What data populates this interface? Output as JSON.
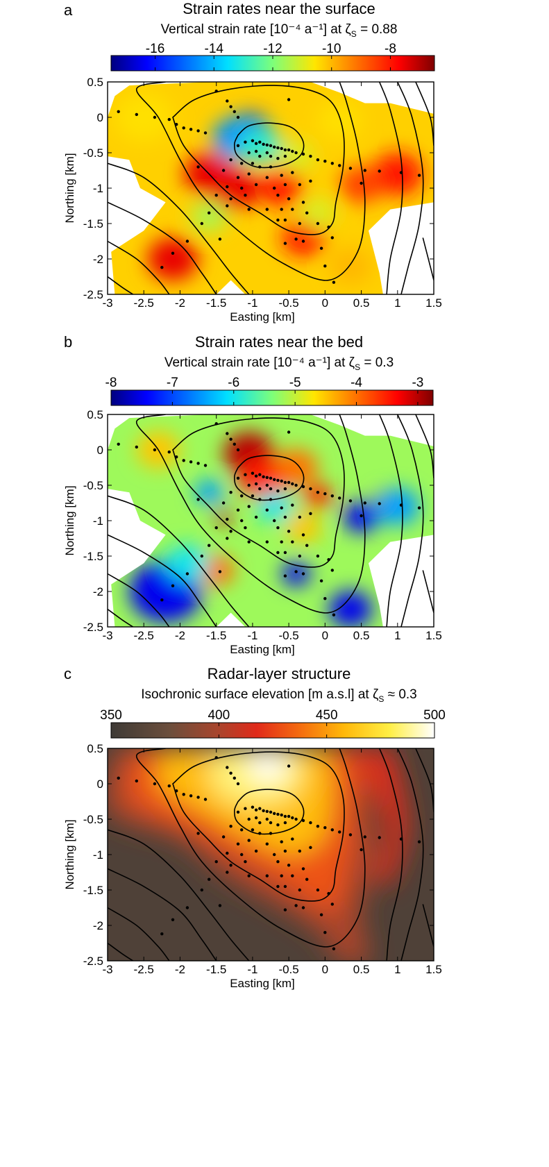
{
  "chart_data": [
    {
      "panel": "a",
      "type": "heatmap",
      "title": "Strain rates near the surface",
      "subtitle": "Vertical strain rate [10⁻⁴ a⁻¹] at ζ",
      "subscript": "S",
      "subtitle_suffix": " = 0.88",
      "colorbar_ticks": [
        "-16",
        "-14",
        "-12",
        "-10",
        "-8"
      ],
      "colorbar_values": [
        -16,
        -14,
        -12,
        -10,
        -8
      ],
      "colorbar_range": [
        -17.5,
        -6.5
      ],
      "colormap": "jet",
      "xlabel": "Easting [km]",
      "ylabel": "Northing [km]",
      "xlim": [
        -3,
        1.5
      ],
      "ylim": [
        -2.5,
        0.5
      ],
      "xticks": [
        "-3",
        "-2.5",
        "-2",
        "-1.5",
        "-1",
        "-0.5",
        "0",
        "0.5",
        "1",
        "1.5"
      ],
      "yticks": [
        "0.5",
        "0",
        "-0.5",
        "-1",
        "-1.5",
        "-2",
        "-2.5"
      ],
      "features": [
        {
          "x": -1.05,
          "y": -0.2,
          "value": -16.5,
          "r": 0.3
        },
        {
          "x": -1.2,
          "y": -0.3,
          "value": -14.5,
          "r": 0.35
        },
        {
          "x": -0.9,
          "y": -0.4,
          "value": -13.0,
          "r": 0.3
        },
        {
          "x": -1.6,
          "y": -0.8,
          "value": -7.5,
          "r": 0.35
        },
        {
          "x": -1.25,
          "y": -1.0,
          "value": -7.5,
          "r": 0.35
        },
        {
          "x": -0.6,
          "y": -1.0,
          "value": -8.0,
          "r": 0.3
        },
        {
          "x": -0.4,
          "y": -0.55,
          "value": -11.0,
          "r": 0.25
        },
        {
          "x": -0.3,
          "y": -1.7,
          "value": -8.0,
          "r": 0.3
        },
        {
          "x": -2.1,
          "y": -2.0,
          "value": -7.5,
          "r": 0.35
        },
        {
          "x": 1.0,
          "y": -0.8,
          "value": -8.0,
          "r": 0.35
        },
        {
          "x": 0.5,
          "y": -0.95,
          "value": -8.5,
          "r": 0.3
        },
        {
          "x": -1.6,
          "y": -1.4,
          "value": -11.5,
          "r": 0.25
        },
        {
          "x": -2.5,
          "y": 0.0,
          "value": -10.5,
          "r": 0.4
        },
        {
          "x": 0.2,
          "y": -0.05,
          "value": -10.5,
          "r": 0.3
        },
        {
          "x": 0.35,
          "y": -2.1,
          "value": -10.0,
          "r": 0.3
        },
        {
          "x": -0.1,
          "y": -1.35,
          "value": -11.0,
          "r": 0.25
        }
      ]
    },
    {
      "panel": "b",
      "type": "heatmap",
      "title": "Strain rates near the bed",
      "subtitle": "Vertical strain rate [10⁻⁴ a⁻¹] at ζ",
      "subscript": "S",
      "subtitle_suffix": " = 0.3",
      "colorbar_ticks": [
        "-8",
        "-7",
        "-6",
        "-5",
        "-4",
        "-3"
      ],
      "colorbar_values": [
        -8,
        -7,
        -6,
        -5,
        -4,
        -3
      ],
      "colorbar_range": [
        -8,
        -2.75
      ],
      "colormap": "jet",
      "xlabel": "Easting [km]",
      "ylabel": "Northing [km]",
      "xlim": [
        -3,
        1.5
      ],
      "ylim": [
        -2.5,
        0.5
      ],
      "xticks": [
        "-3",
        "-2.5",
        "-2",
        "-1.5",
        "-1",
        "-0.5",
        "0",
        "0.5",
        "1",
        "1.5"
      ],
      "yticks": [
        "0.5",
        "0",
        "-0.5",
        "-1",
        "-1.5",
        "-2",
        "-2.5"
      ],
      "features": [
        {
          "x": -1.05,
          "y": -0.05,
          "value": -3.0,
          "r": 0.35
        },
        {
          "x": -0.85,
          "y": -0.4,
          "value": -3.5,
          "r": 0.35
        },
        {
          "x": -0.4,
          "y": -0.25,
          "value": -4.0,
          "r": 0.3
        },
        {
          "x": -2.3,
          "y": 0.0,
          "value": -4.5,
          "r": 0.3
        },
        {
          "x": -1.4,
          "y": -0.95,
          "value": -3.0,
          "r": 0.12
        },
        {
          "x": -0.1,
          "y": -0.65,
          "value": -3.5,
          "r": 0.2
        },
        {
          "x": 0.8,
          "y": -0.7,
          "value": -3.0,
          "r": 0.12
        },
        {
          "x": -1.6,
          "y": -0.6,
          "value": -6.5,
          "r": 0.2
        },
        {
          "x": -0.7,
          "y": -0.8,
          "value": -6.0,
          "r": 0.25
        },
        {
          "x": 0.5,
          "y": -0.95,
          "value": -7.5,
          "r": 0.25
        },
        {
          "x": 1.0,
          "y": -0.8,
          "value": -6.5,
          "r": 0.3
        },
        {
          "x": -0.4,
          "y": -1.75,
          "value": -7.5,
          "r": 0.2
        },
        {
          "x": -2.2,
          "y": -2.0,
          "value": -7.5,
          "r": 0.5
        },
        {
          "x": 0.35,
          "y": -2.25,
          "value": -7.5,
          "r": 0.3
        },
        {
          "x": -1.5,
          "y": -1.7,
          "value": -4.0,
          "r": 0.25
        },
        {
          "x": -0.3,
          "y": -1.1,
          "value": -4.5,
          "r": 0.25
        },
        {
          "x": -1.9,
          "y": -1.6,
          "value": -6.0,
          "r": 0.3
        }
      ]
    },
    {
      "panel": "c",
      "type": "heatmap",
      "title": "Radar-layer structure",
      "subtitle": "Isochronic surface elevation [m a.s.l] at ζ",
      "subscript": "S",
      "subtitle_suffix": " ≈ 0.3",
      "colorbar_ticks": [
        "350",
        "400",
        "450",
        "500"
      ],
      "colorbar_values": [
        350,
        400,
        450,
        500
      ],
      "colorbar_range": [
        350,
        500
      ],
      "colormap": "hot",
      "xlabel": "Easting [km]",
      "ylabel": "Northing [km]",
      "xlim": [
        -3,
        1.5
      ],
      "ylim": [
        -2.5,
        0.5
      ],
      "xticks": [
        "-3",
        "-2.5",
        "-2",
        "-1.5",
        "-1",
        "-0.5",
        "0",
        "0.5",
        "1",
        "1.5"
      ],
      "yticks": [
        "0.5",
        "0",
        "-0.5",
        "-1",
        "-1.5",
        "-2",
        "-2.5"
      ],
      "ridge": {
        "peak_value": 500,
        "peak_x": -0.8,
        "peak_y": 0.2,
        "background_value": 360
      }
    }
  ],
  "stations": [
    [
      -2.85,
      0.08
    ],
    [
      -2.6,
      0.04
    ],
    [
      -2.35,
      0.0
    ],
    [
      -2.15,
      -0.03
    ],
    [
      -2.05,
      -0.1
    ],
    [
      -1.95,
      -0.15
    ],
    [
      -1.85,
      -0.17
    ],
    [
      -1.75,
      -0.19
    ],
    [
      -1.65,
      -0.22
    ],
    [
      -1.5,
      0.37
    ],
    [
      -1.35,
      0.23
    ],
    [
      -1.3,
      0.15
    ],
    [
      -1.25,
      0.08
    ],
    [
      -1.2,
      0.0
    ],
    [
      -0.5,
      0.25
    ],
    [
      -1.2,
      -0.4
    ],
    [
      -1.1,
      -0.35
    ],
    [
      -1.0,
      -0.33
    ],
    [
      -0.95,
      -0.37
    ],
    [
      -0.9,
      -0.35
    ],
    [
      -0.85,
      -0.38
    ],
    [
      -0.8,
      -0.39
    ],
    [
      -0.75,
      -0.4
    ],
    [
      -0.7,
      -0.42
    ],
    [
      -0.65,
      -0.43
    ],
    [
      -0.6,
      -0.44
    ],
    [
      -0.55,
      -0.46
    ],
    [
      -0.5,
      -0.46
    ],
    [
      -0.45,
      -0.48
    ],
    [
      -0.4,
      -0.5
    ],
    [
      -0.3,
      -0.52
    ],
    [
      -0.2,
      -0.55
    ],
    [
      -0.1,
      -0.6
    ],
    [
      0.0,
      -0.62
    ],
    [
      0.1,
      -0.65
    ],
    [
      0.2,
      -0.68
    ],
    [
      0.35,
      -0.72
    ],
    [
      0.55,
      -0.75
    ],
    [
      0.75,
      -0.76
    ],
    [
      1.05,
      -0.78
    ],
    [
      1.3,
      -0.82
    ],
    [
      -1.05,
      -0.5
    ],
    [
      -0.95,
      -0.48
    ],
    [
      -0.9,
      -0.55
    ],
    [
      -0.8,
      -0.5
    ],
    [
      -0.75,
      -0.55
    ],
    [
      -0.65,
      -0.58
    ],
    [
      -0.55,
      -0.55
    ],
    [
      -1.3,
      -0.6
    ],
    [
      -1.15,
      -0.65
    ],
    [
      -1.0,
      -0.65
    ],
    [
      -0.9,
      -0.7
    ],
    [
      -0.75,
      -0.7
    ],
    [
      -1.75,
      -0.7
    ],
    [
      -1.4,
      -0.75
    ],
    [
      -1.2,
      -0.85
    ],
    [
      -1.05,
      -0.8
    ],
    [
      -0.8,
      -0.85
    ],
    [
      -0.6,
      -0.82
    ],
    [
      -0.45,
      -0.78
    ],
    [
      -1.35,
      -0.98
    ],
    [
      -1.15,
      -1.0
    ],
    [
      -0.95,
      -0.95
    ],
    [
      -0.7,
      -1.0
    ],
    [
      -0.55,
      -0.95
    ],
    [
      -0.35,
      -0.95
    ],
    [
      -0.2,
      -0.9
    ],
    [
      -1.5,
      -1.1
    ],
    [
      -1.3,
      -1.15
    ],
    [
      -1.1,
      -1.1
    ],
    [
      -0.65,
      -1.1
    ],
    [
      -0.5,
      -1.15
    ],
    [
      -0.3,
      -1.2
    ],
    [
      -1.6,
      -1.35
    ],
    [
      -1.35,
      -1.25
    ],
    [
      -1.05,
      -1.3
    ],
    [
      -0.8,
      -1.3
    ],
    [
      -0.6,
      -1.3
    ],
    [
      -0.45,
      -1.3
    ],
    [
      -0.25,
      -1.35
    ],
    [
      -0.65,
      -1.45
    ],
    [
      -0.55,
      -1.45
    ],
    [
      -0.35,
      -1.5
    ],
    [
      -0.1,
      -1.5
    ],
    [
      -1.7,
      -1.5
    ],
    [
      -1.45,
      -1.72
    ],
    [
      -0.55,
      -1.78
    ],
    [
      -0.4,
      -1.72
    ],
    [
      -0.3,
      -1.75
    ],
    [
      -0.05,
      -1.85
    ],
    [
      0.1,
      -1.7
    ],
    [
      0.05,
      -1.55
    ],
    [
      -1.9,
      -1.75
    ],
    [
      -2.1,
      -1.92
    ],
    [
      -2.25,
      -2.12
    ],
    [
      0.0,
      -2.1
    ],
    [
      0.12,
      -2.33
    ],
    [
      0.5,
      -0.93
    ]
  ],
  "colors": {
    "axis": "#000000",
    "contour": "#000000",
    "background": "#ffffff"
  }
}
